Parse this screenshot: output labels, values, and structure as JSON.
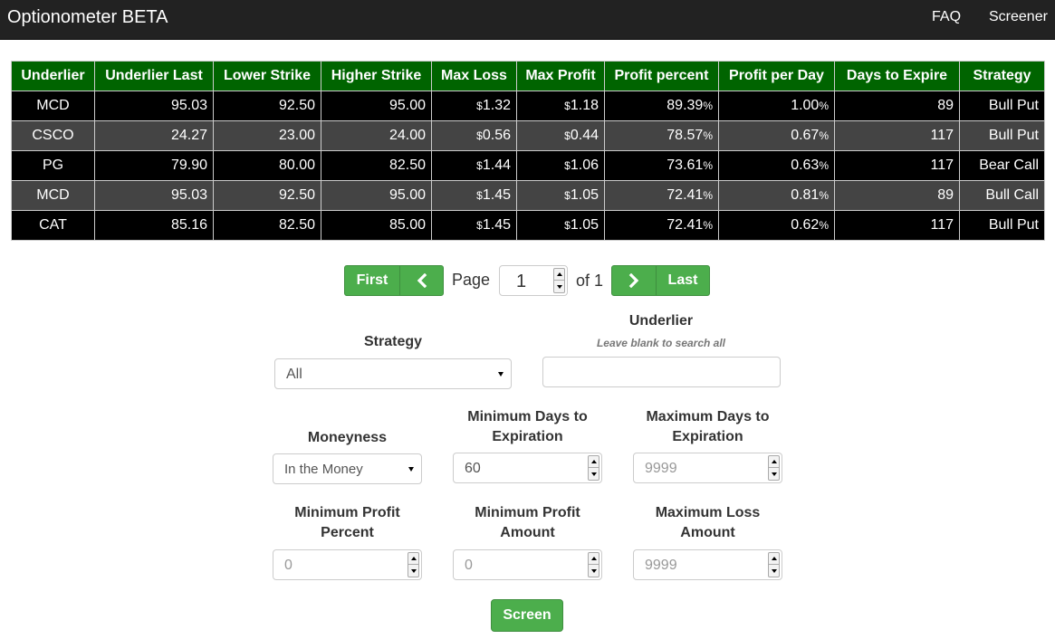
{
  "navbar": {
    "brand": "Optionometer BETA",
    "links": [
      "FAQ",
      "Screener"
    ]
  },
  "table": {
    "headers": [
      "Underlier",
      "Underlier Last",
      "Lower Strike",
      "Higher Strike",
      "Max Loss",
      "Max Profit",
      "Profit percent",
      "Profit per Day",
      "Days to Expire",
      "Strategy"
    ],
    "currency_symbol": "$",
    "percent_symbol": "%",
    "rows": [
      {
        "underlier": "MCD",
        "last": "95.03",
        "lower": "92.50",
        "higher": "95.00",
        "max_loss": "1.32",
        "max_profit": "1.18",
        "profit_pct": "89.39",
        "per_day": "1.00",
        "days": "89",
        "strategy": "Bull Put"
      },
      {
        "underlier": "CSCO",
        "last": "24.27",
        "lower": "23.00",
        "higher": "24.00",
        "max_loss": "0.56",
        "max_profit": "0.44",
        "profit_pct": "78.57",
        "per_day": "0.67",
        "days": "117",
        "strategy": "Bull Put"
      },
      {
        "underlier": "PG",
        "last": "79.90",
        "lower": "80.00",
        "higher": "82.50",
        "max_loss": "1.44",
        "max_profit": "1.06",
        "profit_pct": "73.61",
        "per_day": "0.63",
        "days": "117",
        "strategy": "Bear Call"
      },
      {
        "underlier": "MCD",
        "last": "95.03",
        "lower": "92.50",
        "higher": "95.00",
        "max_loss": "1.45",
        "max_profit": "1.05",
        "profit_pct": "72.41",
        "per_day": "0.81",
        "days": "89",
        "strategy": "Bull Call"
      },
      {
        "underlier": "CAT",
        "last": "85.16",
        "lower": "82.50",
        "higher": "85.00",
        "max_loss": "1.45",
        "max_profit": "1.05",
        "profit_pct": "72.41",
        "per_day": "0.62",
        "days": "117",
        "strategy": "Bull Put"
      }
    ]
  },
  "pagination": {
    "first_label": "First",
    "prev_icon": "chevron-left-icon",
    "page_label": "Page",
    "page_value": "1",
    "of_label": "of 1",
    "next_icon": "chevron-right-icon",
    "last_label": "Last"
  },
  "form": {
    "strategy": {
      "label": "Strategy",
      "value": "All"
    },
    "underlier": {
      "label": "Underlier",
      "hint": "Leave blank to search all",
      "value": ""
    },
    "moneyness": {
      "label": "Moneyness",
      "value": "In the Money"
    },
    "min_days": {
      "label_line1": "Minimum Days to",
      "label_line2": "Expiration",
      "value": "60"
    },
    "max_days": {
      "label_line1": "Maximum Days to",
      "label_line2": "Expiration",
      "placeholder": "9999"
    },
    "min_profit_pct": {
      "label_line1": "Minimum Profit",
      "label_line2": "Percent",
      "placeholder": "0"
    },
    "min_profit_amt": {
      "label_line1": "Minimum Profit",
      "label_line2": "Amount",
      "placeholder": "0"
    },
    "max_loss_amt": {
      "label_line1": "Maximum Loss",
      "label_line2": "Amount",
      "placeholder": "9999"
    },
    "submit_label": "Screen"
  },
  "colors": {
    "navbar": "#222222",
    "header_green": "#006400",
    "button_green": "#4cae4c",
    "row_dark": "#000000",
    "row_grey": "#444444"
  }
}
